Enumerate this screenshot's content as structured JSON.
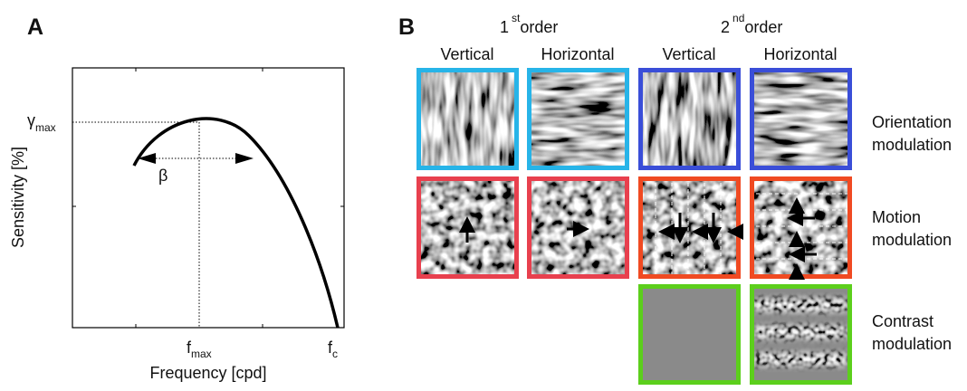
{
  "panel_a": {
    "label": "A",
    "y_axis_label": "Sensitivity [%]",
    "x_axis_label": "Frequency [cpd]",
    "gamma_max": {
      "symbol": "γ",
      "subscript": "max"
    },
    "beta": "β",
    "f_max": {
      "symbol": "f",
      "subscript": "max"
    },
    "f_c": {
      "symbol": "f",
      "subscript": "c"
    }
  },
  "panel_b": {
    "label": "B",
    "groups": [
      {
        "number": "1",
        "superscript": "st",
        "text": "order"
      },
      {
        "number": "2",
        "superscript": "nd",
        "text": "order"
      }
    ],
    "columns": [
      "Vertical",
      "Horizontal",
      "Vertical",
      "Horizontal"
    ],
    "rows": [
      {
        "line1": "Orientation",
        "line2": "modulation"
      },
      {
        "line1": "Motion",
        "line2": "modulation"
      },
      {
        "line1": "Contrast",
        "line2": "modulation"
      }
    ]
  }
}
